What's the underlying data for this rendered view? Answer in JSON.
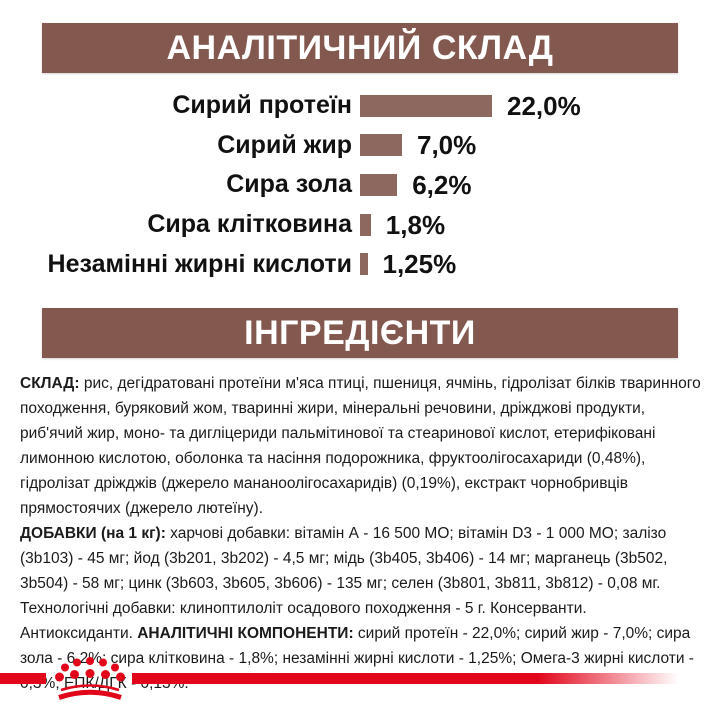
{
  "colors": {
    "brand_red": "#e2061b",
    "section_brown": "#83594f",
    "bar_brown": "#8c685e",
    "text_dark": "#1b1b1b"
  },
  "sections": {
    "analytical_title": "АНАЛІТИЧНИЙ СКЛАД",
    "ingredients_title": "ІНГРЕДІЄНТИ"
  },
  "chart_data": {
    "type": "bar",
    "orientation": "horizontal",
    "title": "АНАЛІТИЧНИЙ СКЛАД",
    "categories": [
      "Сирий протеїн",
      "Сирий жир",
      "Сира зола",
      "Сира клітковина",
      "Незамінні жирні кислоти"
    ],
    "values": [
      22.0,
      7.0,
      6.2,
      1.8,
      1.25
    ],
    "value_labels": [
      "22,0%",
      "7,0%",
      "6,2%",
      "1,8%",
      "1,25%"
    ],
    "unit": "%",
    "xlim": [
      0,
      22
    ],
    "grid": false,
    "bar_color": "#8c685e",
    "value_label_position": "right-of-bar"
  },
  "ingredients": {
    "composition_label": "СКЛАД:",
    "composition_text": " рис, дегідратовані протеїни м'яса птиці, пшениця, ячмінь, гідролізат білків тваринного походження, буряковий жом, тваринні жири, мінеральні речовини, дріжджові продукти, риб'ячий жир, моно- та дигліцериди пальмітинової та стеаринової кислот, етерифіковані лимонною кислотою, оболонка та насіння подорожника, фруктоолігосахариди (0,48%), гідролізат дріжджів (джерело мананоолігосахаридів) (0,19%), екстракт чорнобривців прямостоячих (джерело лютеїну).",
    "additives_label": "ДОБАВКИ (на 1 кг):",
    "additives_text": " харчові добавки: вітамін А - 16 500 МО; вітамін D3 - 1 000 МО; залізо (3b103) - 45 мг; йод (3b201, 3b202) - 4,5 мг; мідь (3b405, 3b406) - 14 мг; марганець (3b502, 3b504) - 58 мг; цинк (3b603, 3b605, 3b606) - 135 мг; селен (3b801, 3b811, 3b812) - 0,08 мг. Технологічні добавки: клиноптилоліт осадового походження - 5 г. Консерванти. Антиоксиданти. ",
    "analytical_label": "АНАЛІТИЧНІ КОМПОНЕНТИ:",
    "analytical_text": " сирий протеїн - 22,0%; сирий жир - 7,0%; сира зола - 6,2%; сира клітковина - 1,8%; незамінні жирні кислоти - 1,25%; Омега-3 жирні кислоти - 0,3%; ЕПК/ДГК - 0,13%."
  },
  "footer": {
    "logo": "royal-canin-crown-icon"
  }
}
